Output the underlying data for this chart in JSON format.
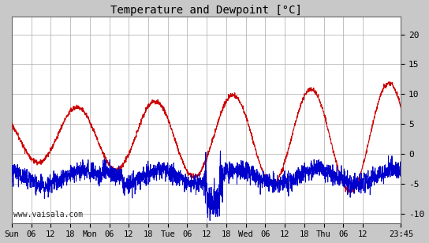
{
  "title": "Temperature and Dewpoint [°C]",
  "ylabel_right_ticks": [
    -10,
    -5,
    0,
    5,
    10,
    15,
    20
  ],
  "ylim": [
    -11.5,
    23
  ],
  "temp_color": "#cc0000",
  "dew_color": "#0000cc",
  "line_width": 0.7,
  "bg_color": "#c8c8c8",
  "plot_bg_color": "#ffffff",
  "grid_color": "#aaaaaa",
  "watermark": "www.vaisala.com",
  "xtick_labels": [
    "Sun",
    "06",
    "12",
    "18",
    "Mon",
    "06",
    "12",
    "18",
    "Tue",
    "06",
    "12",
    "18",
    "Wed",
    "06",
    "12",
    "18",
    "Thu",
    "06",
    "12",
    "23:45"
  ],
  "xtick_positions": [
    0,
    6,
    12,
    18,
    24,
    30,
    36,
    42,
    48,
    54,
    60,
    66,
    72,
    78,
    84,
    90,
    96,
    102,
    108,
    119.75
  ],
  "total_hours": 119.75,
  "figsize": [
    5.44,
    3.08
  ],
  "dpi": 100
}
